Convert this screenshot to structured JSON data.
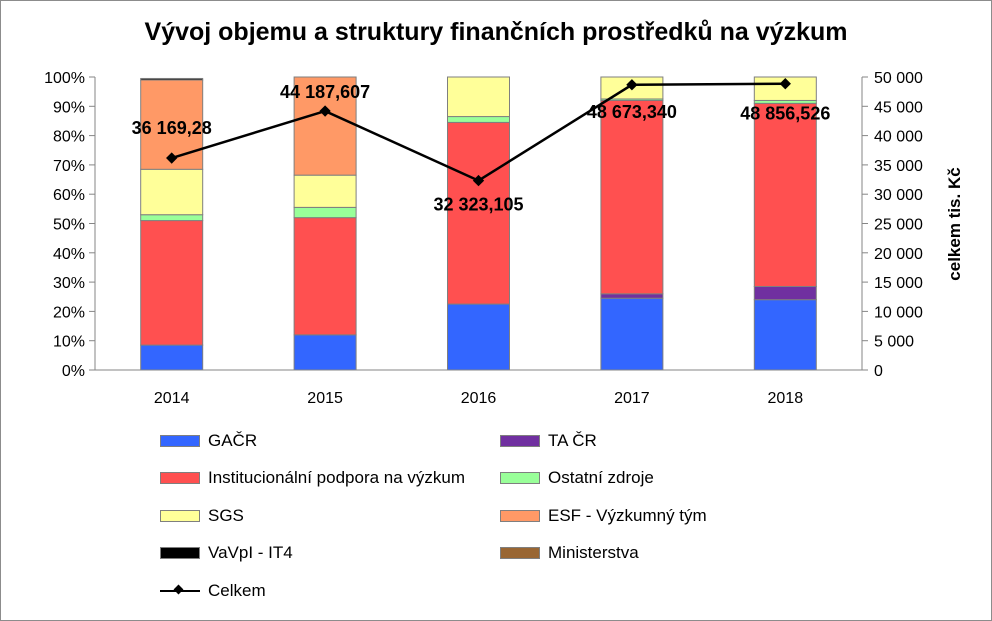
{
  "chart_data": {
    "type": "bar",
    "stacked": true,
    "percent_stacked": true,
    "title": "Vývoj objemu a struktury finančních prostředků na výzkum",
    "categories": [
      "2014",
      "2015",
      "2016",
      "2017",
      "2018"
    ],
    "left_axis": {
      "ylim": [
        0,
        100
      ],
      "ticks": [
        "0%",
        "10%",
        "20%",
        "30%",
        "40%",
        "50%",
        "60%",
        "70%",
        "80%",
        "90%",
        "100%"
      ]
    },
    "right_axis": {
      "ylabel": "celkem tis. Kč",
      "ylim": [
        0,
        50000
      ],
      "ticks": [
        "0",
        "5 000",
        "10 000",
        "15 000",
        "20 000",
        "25 000",
        "30 000",
        "35 000",
        "40 000",
        "45 000",
        "50 000"
      ]
    },
    "series": [
      {
        "name": "GAČR",
        "color": "#3366ff",
        "values": [
          8.5,
          12,
          22.5,
          24.5,
          24
        ]
      },
      {
        "name": "TA ČR",
        "color": "#7030a0",
        "values": [
          0,
          0,
          0,
          1.5,
          4.5
        ]
      },
      {
        "name": "Institucionální podpora na výzkum",
        "color": "#ff5050",
        "values": [
          42.5,
          40,
          62,
          66,
          62.5
        ]
      },
      {
        "name": "Ostatní zdroje",
        "color": "#99ff99",
        "values": [
          2,
          3.5,
          2,
          0.5,
          1
        ]
      },
      {
        "name": "SGS",
        "color": "#ffff99",
        "values": [
          15.5,
          11,
          13.5,
          7.5,
          8
        ]
      },
      {
        "name": "ESF - Výzkumný tým",
        "color": "#ff9966",
        "values": [
          30.5,
          33.5,
          0,
          0,
          0
        ]
      },
      {
        "name": "VaVpI - IT4",
        "color": "#000000",
        "values": [
          0.5,
          0,
          0,
          0,
          0
        ]
      },
      {
        "name": "Ministerstva",
        "color": "#996633",
        "values": [
          0,
          0,
          0,
          0,
          0
        ]
      }
    ],
    "line": {
      "name": "Celkem",
      "color": "#000000",
      "values": [
        36169.28,
        44187.607,
        32323.105,
        48673.34,
        48856.526
      ],
      "labels": [
        "36 169,28",
        "44 187,607",
        "32 323,105",
        "48 673,340",
        "48 856,526"
      ]
    },
    "grid": false,
    "legend_position": "bottom"
  }
}
